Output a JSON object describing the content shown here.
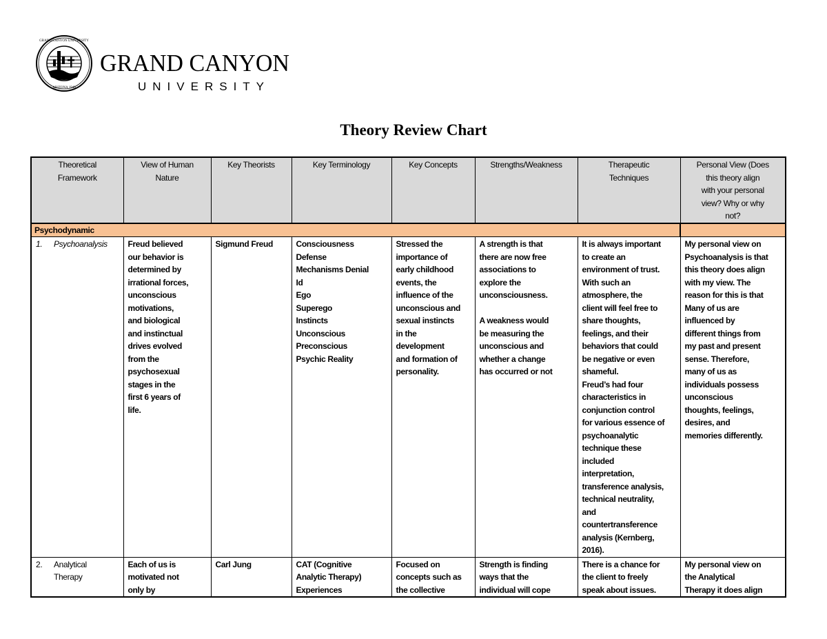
{
  "logo": {
    "wordmark": "GRAND CANYON",
    "sub": "UNIVERSITY",
    "seal_text": "GRAND CANYON UNIVERSITY",
    "seal_bottom": "ARIZONA 1949"
  },
  "title": "Theory Review Chart",
  "headers": [
    "Theoretical\nFramework",
    "View of Human\nNature",
    "Key Theorists",
    "Key Terminology",
    "Key Concepts",
    "Strengths/Weakness",
    "Therapeutic\nTechniques",
    "Personal View (Does\nthis theory align\nwith your personal\nview? Why or why\nnot?"
  ],
  "section": "Psychodynamic",
  "colors": {
    "header_bg": "#d9d9d9",
    "section_bg": "#f8c193"
  },
  "rows": [
    {
      "number": "1.",
      "framework": [
        "Psychoanalysis"
      ],
      "cells": [
        [
          "Freud believed",
          "our behavior is",
          "determined by",
          "irrational forces,",
          "unconscious",
          "motivations,",
          "and biological",
          "and instinctual",
          "drives evolved",
          "from the",
          "psychosexual",
          "stages in the",
          "first 6 years of",
          "life."
        ],
        [
          "Sigmund Freud"
        ],
        [
          "Consciousness",
          "Defense",
          "Mechanisms Denial",
          "Id",
          "Ego",
          "Superego",
          "Instincts",
          "Unconscious",
          "Preconscious",
          "Psychic Reality"
        ],
        [
          "Stressed the",
          "importance of",
          "early childhood",
          "events, the",
          "influence of the",
          "unconscious and",
          "sexual instincts",
          "in the",
          "development",
          "and formation of",
          "personality."
        ],
        [
          "A strength is that",
          "there are now free",
          "associations to",
          "explore the",
          "unconsciousness.",
          "",
          "A weakness would",
          "be measuring the",
          "unconscious and",
          "whether a change",
          "has occurred or not"
        ],
        [
          "It is always important",
          "to create an",
          "environment of trust.",
          "With such an",
          "atmosphere, the",
          "client will feel free to",
          "share thoughts,",
          "feelings, and their",
          "behaviors that could",
          "be negative or even",
          "shameful.",
          "Freud’s had four",
          "characteristics in",
          "conjunction control",
          "for various essence of",
          "psychoanalytic",
          "technique these",
          "included",
          "interpretation,",
          "transference analysis,",
          "technical neutrality,",
          "and",
          "countertransference",
          "analysis (Kernberg,",
          "2016)."
        ],
        [
          "My personal view on",
          "Psychoanalysis is that",
          "this theory does align",
          "with my view. The",
          "reason for this is that",
          "Many of us are",
          "influenced by",
          "different things from",
          "my past and present",
          "sense. Therefore,",
          "many of us as",
          "individuals possess",
          "unconscious",
          "thoughts, feelings,",
          "desires, and",
          "memories differently."
        ]
      ]
    },
    {
      "number": "2.",
      "framework": [
        "Analytical",
        "Therapy"
      ],
      "cells": [
        [
          "Each of us is",
          "motivated not",
          "only by"
        ],
        [
          "Carl Jung"
        ],
        [
          "CAT (Cognitive",
          "Analytic Therapy)",
          "Experiences"
        ],
        [
          "Focused on",
          "concepts such as",
          "the collective"
        ],
        [
          "Strength is finding",
          "ways that the",
          "individual will cope"
        ],
        [
          "There is a chance for",
          "the client to freely",
          "speak about issues."
        ],
        [
          "My personal view on",
          "the Analytical",
          "Therapy it does align"
        ]
      ]
    }
  ]
}
